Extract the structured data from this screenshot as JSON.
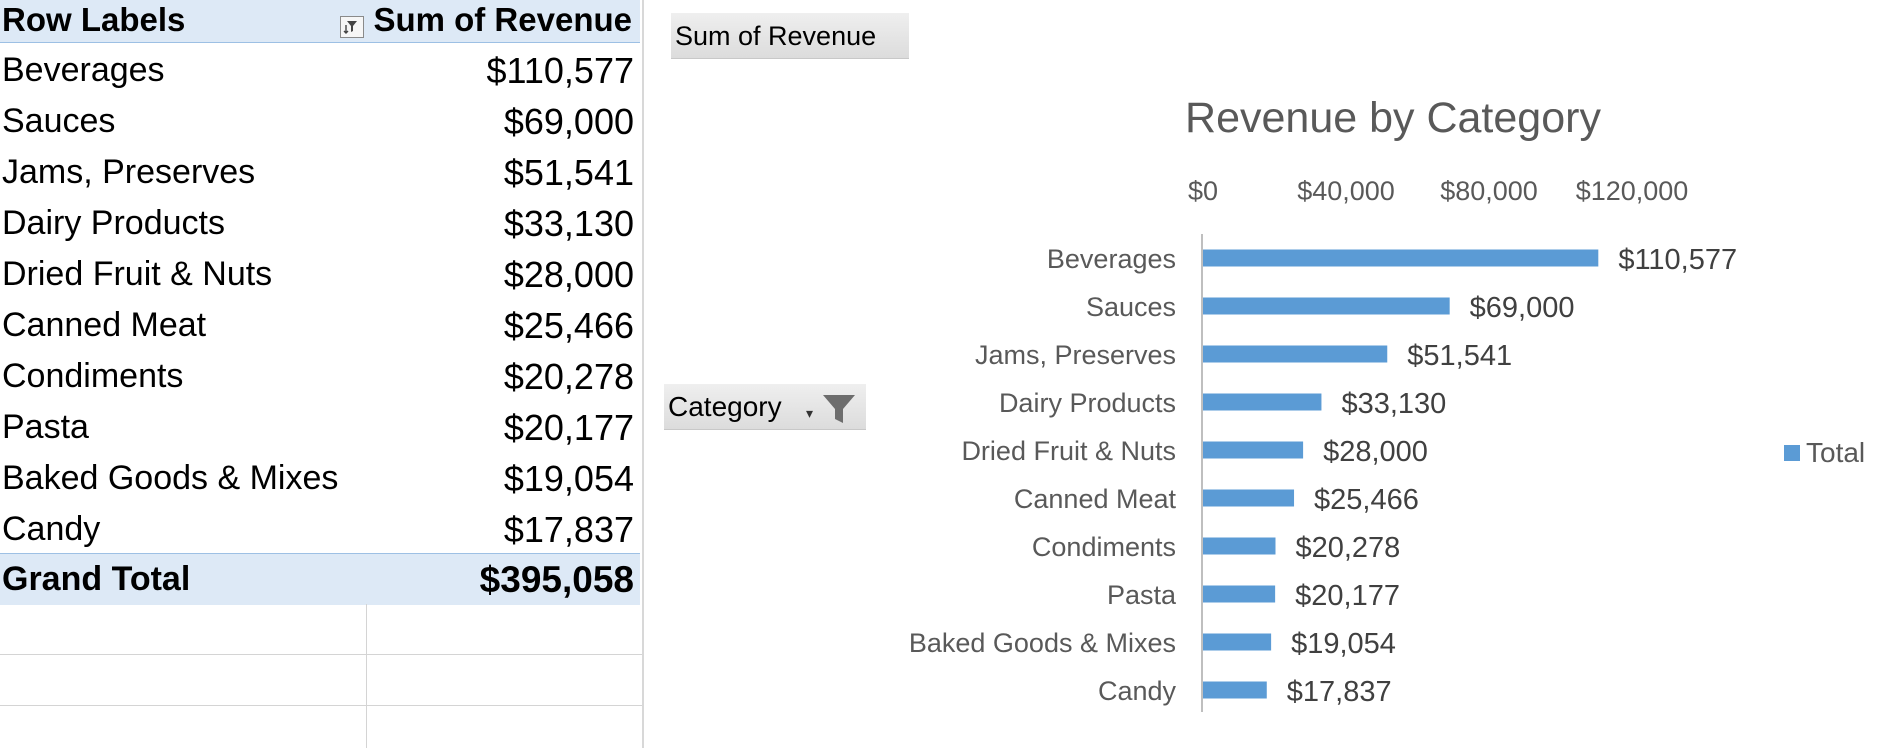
{
  "pivot_table": {
    "header": {
      "row_labels": "Row Labels",
      "value_label": "Sum of Revenue",
      "filter_icon": "filter-sort-icon"
    },
    "rows": [
      {
        "label": "Beverages",
        "value": "$110,577"
      },
      {
        "label": "Sauces",
        "value": "$69,000"
      },
      {
        "label": "Jams, Preserves",
        "value": "$51,541"
      },
      {
        "label": "Dairy Products",
        "value": "$33,130"
      },
      {
        "label": "Dried Fruit & Nuts",
        "value": "$28,000"
      },
      {
        "label": "Canned Meat",
        "value": "$25,466"
      },
      {
        "label": "Condiments",
        "value": "$20,278"
      },
      {
        "label": "Pasta",
        "value": "$20,177"
      },
      {
        "label": "Baked Goods & Mixes",
        "value": "$19,054"
      },
      {
        "label": "Candy",
        "value": "$17,837"
      }
    ],
    "grand_total": {
      "label": "Grand Total",
      "value": "$395,058"
    }
  },
  "chart_fields": {
    "value_field": "Sum of Revenue",
    "axis_field": "Category",
    "axis_field_icon": "funnel-filter-icon"
  },
  "colors": {
    "bar": "#5b9bd5",
    "header_fill": "#dde9f6",
    "chart_text": "#595959"
  },
  "chart_data": {
    "type": "bar",
    "orientation": "horizontal",
    "title": "Revenue by Category",
    "categories": [
      "Beverages",
      "Sauces",
      "Jams, Preserves",
      "Dairy Products",
      "Dried Fruit & Nuts",
      "Canned Meat",
      "Condiments",
      "Pasta",
      "Baked Goods & Mixes",
      "Candy"
    ],
    "series": [
      {
        "name": "Total",
        "values": [
          110577,
          69000,
          51541,
          33130,
          28000,
          25466,
          20278,
          20177,
          19054,
          17837
        ]
      }
    ],
    "data_labels": [
      "$110,577",
      "$69,000",
      "$51,541",
      "$33,130",
      "$28,000",
      "$25,466",
      "$20,278",
      "$20,177",
      "$19,054",
      "$17,837"
    ],
    "x_ticks": [
      0,
      40000,
      80000,
      120000
    ],
    "x_tick_labels": [
      "$0",
      "$40,000",
      "$80,000",
      "$120,000"
    ],
    "xlim": [
      0,
      120000
    ],
    "axis_position": "top",
    "legend": "right",
    "grid": false
  }
}
